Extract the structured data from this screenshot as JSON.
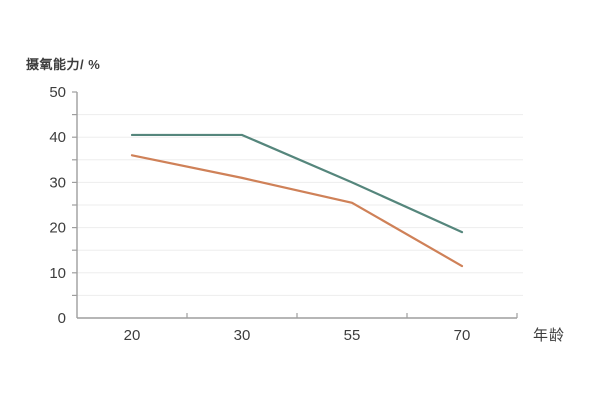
{
  "chart_data": {
    "type": "line",
    "title": "摄氧能力/ %",
    "xlabel": "年龄",
    "ylabel": "摄氧能力/ %",
    "categories": [
      "20",
      "30",
      "55",
      "70"
    ],
    "series": [
      {
        "name": "teal-line",
        "color": "#55867c",
        "values": [
          40.5,
          40.5,
          30,
          19
        ]
      },
      {
        "name": "orange-line",
        "color": "#cf8158",
        "values": [
          36,
          31,
          25.5,
          11.5
        ]
      }
    ],
    "ylim": [
      0,
      50
    ],
    "y_major_ticks": [
      0,
      10,
      20,
      30,
      40,
      50
    ],
    "y_minor_step": 5,
    "grid": "horizontal minor gridlines every 5",
    "legend_position": "none",
    "colors": {
      "axis": "#9e9e9e",
      "grid": "#ededed",
      "text": "#3d3d3d"
    }
  }
}
